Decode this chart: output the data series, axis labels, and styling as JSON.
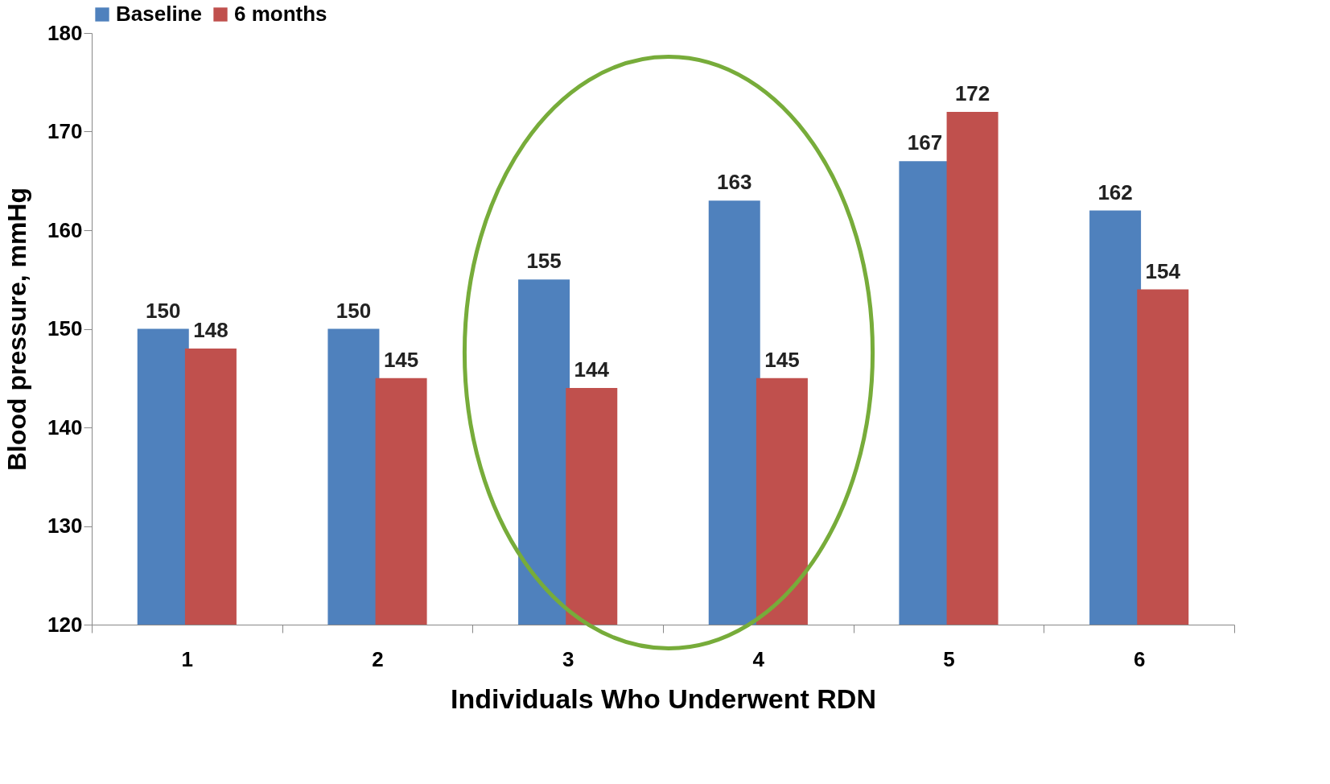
{
  "chart_data": {
    "type": "bar",
    "xlabel": "Individuals Who Underwent RDN",
    "ylabel": "Blood pressure, mmHg",
    "categories": [
      "1",
      "2",
      "3",
      "4",
      "5",
      "6"
    ],
    "series": [
      {
        "name": "Baseline",
        "color": "#4f81bd",
        "values": [
          150,
          150,
          155,
          163,
          167,
          162
        ]
      },
      {
        "name": "6 months",
        "color": "#c0504d",
        "values": [
          148,
          145,
          144,
          145,
          172,
          154
        ]
      }
    ],
    "ylim": [
      120,
      180
    ],
    "yticks": [
      120,
      130,
      140,
      150,
      160,
      170,
      180
    ],
    "grid": false,
    "legend": "top",
    "data_labels": true
  }
}
